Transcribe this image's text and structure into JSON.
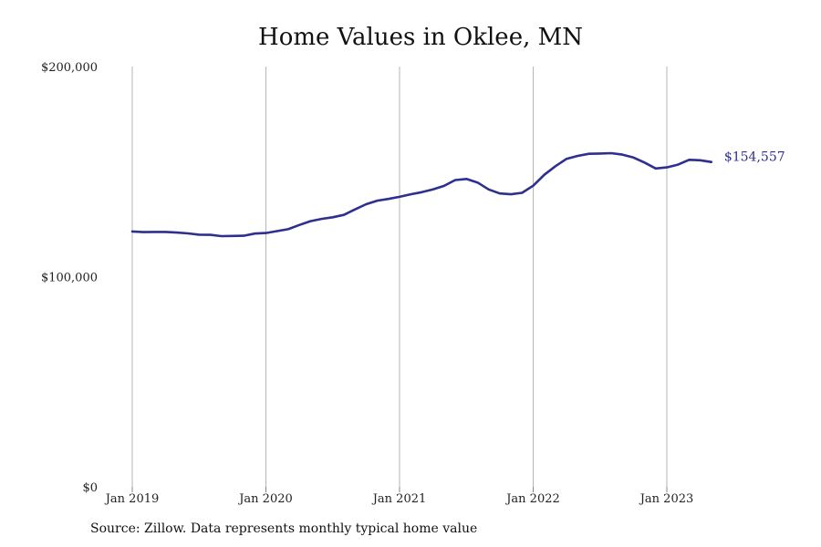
{
  "chart_data": {
    "type": "line",
    "title": "Home Values in Oklee, MN",
    "source": "Source: Zillow. Data represents monthly typical home value",
    "ylim": [
      0,
      200000
    ],
    "y_ticks": [
      {
        "value": 0,
        "label": "$0"
      },
      {
        "value": 100000,
        "label": "$100,000"
      },
      {
        "value": 200000,
        "label": "$200,000"
      }
    ],
    "x_ticks": [
      {
        "value": "2019-01",
        "label": "Jan 2019"
      },
      {
        "value": "2020-01",
        "label": "Jan 2020"
      },
      {
        "value": "2021-01",
        "label": "Jan 2021"
      },
      {
        "value": "2022-01",
        "label": "Jan 2022"
      },
      {
        "value": "2023-01",
        "label": "Jan 2023"
      }
    ],
    "grid": "vertical",
    "series": [
      {
        "color": "#2e2f8f",
        "end_label": "$154,557",
        "x": [
          "2019-01",
          "2019-02",
          "2019-03",
          "2019-04",
          "2019-05",
          "2019-06",
          "2019-07",
          "2019-08",
          "2019-09",
          "2019-10",
          "2019-11",
          "2019-12",
          "2020-01",
          "2020-02",
          "2020-03",
          "2020-04",
          "2020-05",
          "2020-06",
          "2020-07",
          "2020-08",
          "2020-09",
          "2020-10",
          "2020-11",
          "2020-12",
          "2021-01",
          "2021-02",
          "2021-03",
          "2021-04",
          "2021-05",
          "2021-06",
          "2021-07",
          "2021-08",
          "2021-09",
          "2021-10",
          "2021-11",
          "2021-12",
          "2022-01",
          "2022-02",
          "2022-03",
          "2022-04",
          "2022-05",
          "2022-06",
          "2022-07",
          "2022-08",
          "2022-09",
          "2022-10",
          "2022-11",
          "2022-12",
          "2023-01",
          "2023-02",
          "2023-03",
          "2023-04",
          "2023-05"
        ],
        "values": [
          121500,
          121200,
          121300,
          121300,
          121000,
          120600,
          120000,
          119900,
          119300,
          119400,
          119500,
          120500,
          120800,
          121700,
          122600,
          124600,
          126400,
          127500,
          128300,
          129400,
          132000,
          134500,
          136200,
          137000,
          138000,
          139200,
          140200,
          141500,
          143200,
          146000,
          146500,
          144800,
          141500,
          139600,
          139200,
          139900,
          143300,
          148500,
          152600,
          156100,
          157500,
          158500,
          158600,
          158800,
          158100,
          156700,
          154300,
          151500,
          152000,
          153300,
          155600,
          155400,
          154557
        ]
      }
    ]
  }
}
